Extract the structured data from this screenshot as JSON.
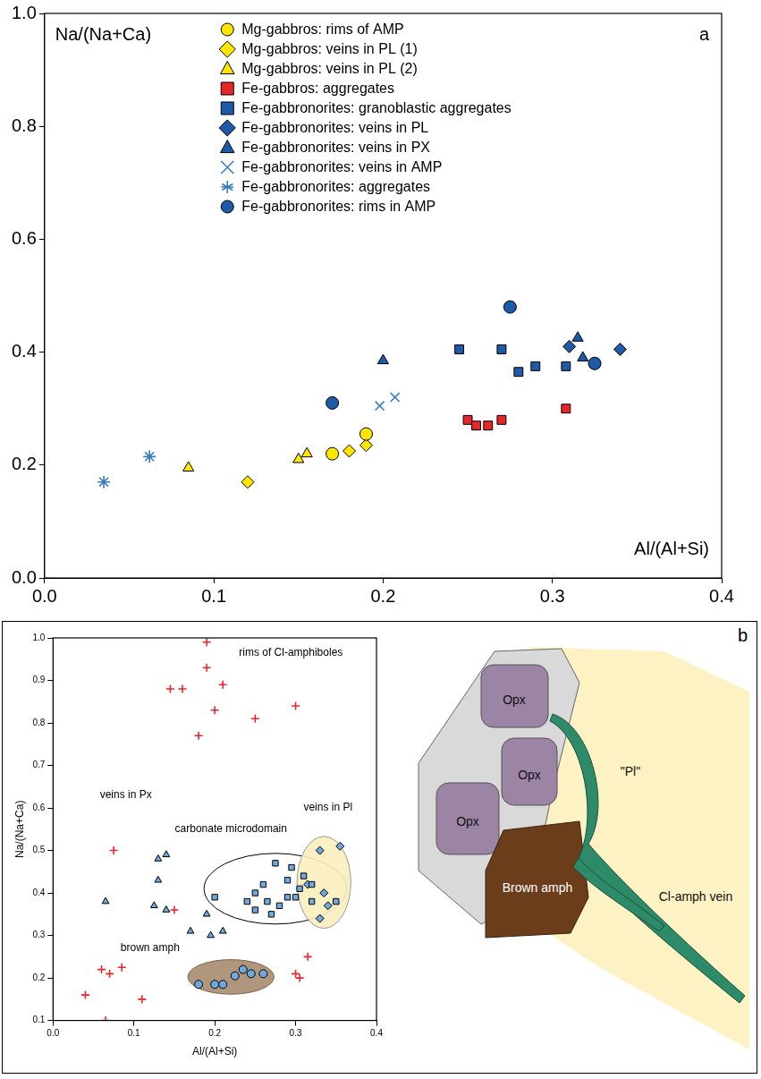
{
  "chart_data": [
    {
      "type": "scatter",
      "panel": "a",
      "xlabel": "Al/(Al+Si)",
      "ylabel": "Na/(Na+Ca)",
      "xlim": [
        0,
        0.4
      ],
      "ylim": [
        0,
        1
      ],
      "xticks": [
        {
          "value": 0,
          "label": "0.0"
        },
        0.1,
        0.2,
        0.3,
        0.4
      ],
      "yticks": [
        {
          "value": 0,
          "label": "0.0"
        },
        0.2,
        0.4,
        0.6,
        0.8,
        {
          "value": 1,
          "label": "1.0"
        }
      ],
      "grid": false,
      "legend": "top",
      "series": [
        {
          "name": "Mg-gabbros: rims of AMP",
          "color": "#ffe600",
          "marker": "circle",
          "x": [
            0.17,
            0.19
          ],
          "values": [
            0.22,
            0.255
          ]
        },
        {
          "name": "Mg-gabbros: veins in PL (1)",
          "color": "#ffe600",
          "marker": "diamond",
          "x": [
            0.12,
            0.18,
            0.19
          ],
          "values": [
            0.17,
            0.225,
            0.235
          ]
        },
        {
          "name": "Mg-gabbros: veins in PL (2)",
          "color": "#ffe600",
          "marker": "triangle",
          "x": [
            0.085,
            0.15,
            0.155
          ],
          "values": [
            0.195,
            0.21,
            0.22
          ]
        },
        {
          "name": "Fe-gabbros: aggregates",
          "color": "#e8262a",
          "marker": "square",
          "x": [
            0.25,
            0.255,
            0.262,
            0.27,
            0.308
          ],
          "values": [
            0.28,
            0.27,
            0.27,
            0.28,
            0.3
          ]
        },
        {
          "name": "Fe-gabbronorites: granoblastic aggregates",
          "color": "#1f5aa6",
          "marker": "square",
          "x": [
            0.245,
            0.27,
            0.28,
            0.29,
            0.308
          ],
          "values": [
            0.405,
            0.405,
            0.365,
            0.375,
            0.375
          ]
        },
        {
          "name": "Fe-gabbronorites: veins in PL",
          "color": "#1f5aa6",
          "marker": "diamond",
          "x": [
            0.31,
            0.34
          ],
          "values": [
            0.41,
            0.405
          ]
        },
        {
          "name": "Fe-gabbronorites: veins in PX",
          "color": "#1f5aa6",
          "marker": "triangle",
          "x": [
            0.2,
            0.315,
            0.318
          ],
          "values": [
            0.385,
            0.425,
            0.39
          ]
        },
        {
          "name": "Fe-gabbronorites: veins in AMP",
          "color": "#3a7bbf",
          "marker": "x",
          "x": [
            0.198,
            0.207
          ],
          "values": [
            0.305,
            0.32
          ]
        },
        {
          "name": "Fe-gabbronorites: aggregates",
          "color": "#3a7bbf",
          "marker": "asterisk",
          "x": [
            0.035,
            0.062
          ],
          "values": [
            0.17,
            0.215
          ]
        },
        {
          "name": "Fe-gabbronorites: rims in AMP",
          "color": "#1f5aa6",
          "marker": "circle",
          "x": [
            0.17,
            0.275,
            0.325
          ],
          "values": [
            0.31,
            0.48,
            0.38
          ]
        }
      ]
    },
    {
      "type": "scatter",
      "panel": "b",
      "xlabel": "Al/(Al+Si)",
      "ylabel": "Na/(Na+Ca)",
      "xlim": [
        0,
        0.4
      ],
      "ylim": [
        0.1,
        1
      ],
      "xticks": [
        {
          "value": 0,
          "label": "0.0"
        },
        0.1,
        0.2,
        0.3,
        0.4
      ],
      "yticks": [
        0.1,
        0.2,
        0.3,
        0.4,
        0.5,
        0.6,
        0.7,
        0.8,
        0.9,
        {
          "value": 1,
          "label": "1.0"
        }
      ],
      "grid": false,
      "series": [
        {
          "color": "#e8262a",
          "marker": "plus",
          "x": [
            0.19,
            0.19,
            0.16,
            0.145,
            0.21,
            0.2,
            0.18,
            0.25,
            0.3,
            0.075,
            0.15,
            0.06,
            0.07,
            0.04,
            0.065,
            0.11,
            0.085,
            0.315,
            0.3,
            0.305
          ],
          "values": [
            0.99,
            0.93,
            0.88,
            0.88,
            0.89,
            0.83,
            0.77,
            0.81,
            0.84,
            0.5,
            0.36,
            0.22,
            0.21,
            0.16,
            0.1,
            0.15,
            0.225,
            0.25,
            0.21,
            0.2
          ]
        },
        {
          "color": "#6fa8dc",
          "marker": "triangle",
          "x": [
            0.13,
            0.14,
            0.13,
            0.14,
            0.125,
            0.065,
            0.17,
            0.19,
            0.195,
            0.21
          ],
          "values": [
            0.48,
            0.49,
            0.43,
            0.36,
            0.37,
            0.38,
            0.31,
            0.35,
            0.3,
            0.31
          ]
        },
        {
          "color": "#6fa8dc",
          "marker": "square",
          "x": [
            0.2,
            0.24,
            0.25,
            0.26,
            0.265,
            0.27,
            0.275,
            0.28,
            0.29,
            0.295,
            0.3,
            0.305,
            0.31,
            0.32,
            0.32,
            0.35,
            0.25,
            0.29
          ],
          "values": [
            0.39,
            0.38,
            0.36,
            0.42,
            0.38,
            0.35,
            0.47,
            0.37,
            0.43,
            0.46,
            0.39,
            0.41,
            0.44,
            0.38,
            0.42,
            0.38,
            0.4,
            0.39
          ]
        },
        {
          "color": "#6fa8dc",
          "marker": "diamond",
          "x": [
            0.33,
            0.355,
            0.335,
            0.34,
            0.33,
            0.315
          ],
          "values": [
            0.5,
            0.51,
            0.4,
            0.37,
            0.34,
            0.42
          ]
        },
        {
          "color": "#6fa8dc",
          "marker": "circle",
          "x": [
            0.18,
            0.2,
            0.21,
            0.225,
            0.235,
            0.245,
            0.26
          ],
          "values": [
            0.185,
            0.185,
            0.185,
            0.205,
            0.22,
            0.21,
            0.21
          ]
        }
      ],
      "annotations": [
        {
          "text": "rims of Cl-amphiboles",
          "x": 0.23,
          "y": 0.965
        },
        {
          "text": "veins in Px",
          "x": 0.09,
          "y": 0.63
        },
        {
          "text": "carbonate microdomain",
          "x": 0.22,
          "y": 0.55
        },
        {
          "text": "veins in Pl",
          "x": 0.34,
          "y": 0.6
        },
        {
          "text": "brown amph",
          "x": 0.12,
          "y": 0.27
        }
      ]
    }
  ],
  "diagram": {
    "labels": [
      "Opx",
      "Opx",
      "Opx",
      "\"Pl\"",
      "Brown amph",
      "Cl-amph vein"
    ]
  }
}
